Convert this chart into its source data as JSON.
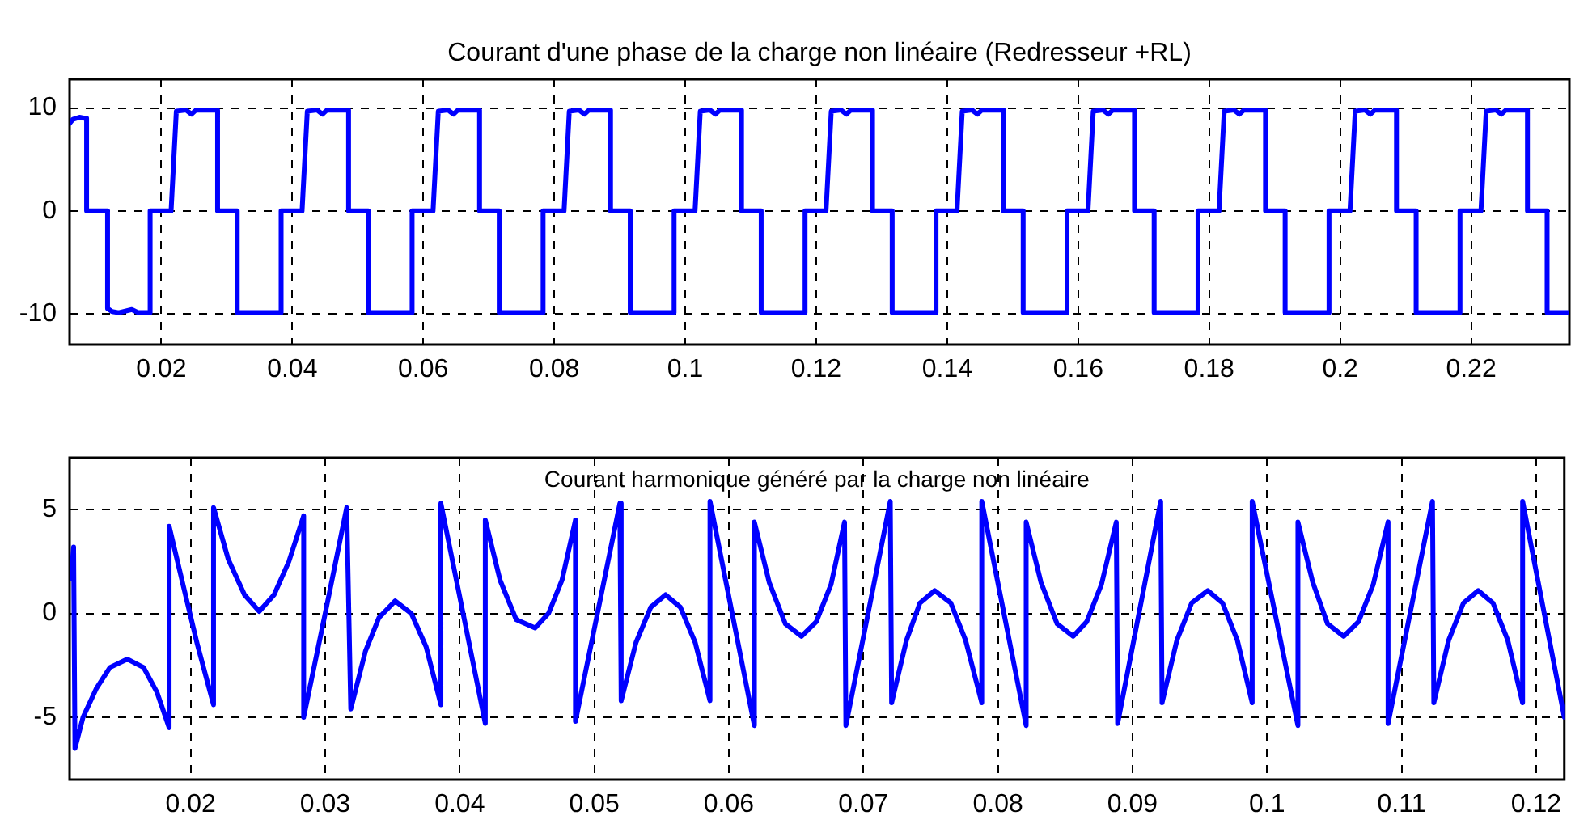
{
  "chart_data": [
    {
      "type": "line",
      "title": "Courant d'une phase de la charge non linéaire (Redresseur +RL)",
      "x": [
        0.006,
        0.0065,
        0.0075,
        0.0083,
        0.0086,
        0.0086,
        0.0118,
        0.0118,
        0.0125,
        0.0135,
        0.0155,
        0.0165,
        0.0183,
        0.0183,
        0.0215,
        0.0223,
        0.0238,
        0.0246,
        0.0253,
        0.0286,
        0.0286,
        0.0316,
        0.0316,
        0.0383,
        0.0383,
        0.0415,
        0.0423,
        0.0438,
        0.0446,
        0.0453,
        0.0486,
        0.0486,
        0.0516,
        0.0516,
        0.0583,
        0.0583,
        0.0615,
        0.0623,
        0.0638,
        0.0646,
        0.0653,
        0.0686,
        0.0686,
        0.0716,
        0.0716,
        0.0783,
        0.0783,
        0.0815,
        0.0823,
        0.0838,
        0.0846,
        0.0853,
        0.0886,
        0.0886,
        0.0916,
        0.0916,
        0.0983,
        0.0983,
        0.1015,
        0.1023,
        0.1038,
        0.1046,
        0.1053,
        0.1086,
        0.1086,
        0.1116,
        0.1116,
        0.1183,
        0.1183,
        0.1215,
        0.1223,
        0.1238,
        0.1246,
        0.1253,
        0.1286,
        0.1286,
        0.1316,
        0.1316,
        0.1383,
        0.1383,
        0.1415,
        0.1423,
        0.1438,
        0.1446,
        0.1453,
        0.1486,
        0.1486,
        0.1516,
        0.1516,
        0.1583,
        0.1583,
        0.1615,
        0.1623,
        0.1638,
        0.1646,
        0.1653,
        0.1686,
        0.1686,
        0.1716,
        0.1716,
        0.1783,
        0.1783,
        0.1815,
        0.1823,
        0.1838,
        0.1846,
        0.1853,
        0.1886,
        0.1886,
        0.1916,
        0.1916,
        0.1983,
        0.1983,
        0.2015,
        0.2023,
        0.2038,
        0.2046,
        0.2053,
        0.2086,
        0.2086,
        0.2116,
        0.2116,
        0.2183,
        0.2183,
        0.2215,
        0.2223,
        0.2238,
        0.2246,
        0.2253,
        0.2286,
        0.2286,
        0.2316,
        0.2316,
        0.235
      ],
      "series": [
        {
          "color": "#0000ff",
          "values": [
            8.5,
            8.9,
            9.1,
            9.0,
            9.0,
            0,
            0,
            -9.5,
            -9.8,
            -9.9,
            -9.6,
            -9.9,
            -9.9,
            0,
            0,
            9.7,
            9.8,
            9.4,
            9.8,
            9.8,
            0,
            0,
            -9.9,
            -9.9,
            0,
            0,
            9.7,
            9.8,
            9.4,
            9.8,
            9.8,
            0,
            0,
            -9.9,
            -9.9,
            0,
            0,
            9.7,
            9.8,
            9.4,
            9.8,
            9.8,
            0,
            0,
            -9.9,
            -9.9,
            0,
            0,
            9.7,
            9.8,
            9.4,
            9.8,
            9.8,
            0,
            0,
            -9.9,
            -9.9,
            0,
            0,
            9.7,
            9.8,
            9.4,
            9.8,
            9.8,
            0,
            0,
            -9.9,
            -9.9,
            0,
            0,
            9.7,
            9.8,
            9.4,
            9.8,
            9.8,
            0,
            0,
            -9.9,
            -9.9,
            0,
            0,
            9.7,
            9.8,
            9.4,
            9.8,
            9.8,
            0,
            0,
            -9.9,
            -9.9,
            0,
            0,
            9.7,
            9.8,
            9.4,
            9.8,
            9.8,
            0,
            0,
            -9.9,
            -9.9,
            0,
            0,
            9.7,
            9.8,
            9.4,
            9.8,
            9.8,
            0,
            0,
            -9.9,
            -9.9,
            0,
            0,
            9.7,
            9.8,
            9.4,
            9.8,
            9.8,
            0,
            0,
            -9.9,
            -9.9,
            0,
            0,
            9.7,
            9.8,
            9.4,
            9.8,
            9.8,
            0,
            0,
            -9.9,
            -9.9
          ]
        }
      ],
      "xlim": [
        0.006,
        0.235
      ],
      "ylim": [
        -13,
        12.8
      ],
      "xticks": [
        0.02,
        0.04,
        0.06,
        0.08,
        0.1,
        0.12,
        0.14,
        0.16,
        0.18,
        0.2,
        0.22
      ],
      "yticks": [
        -10,
        0,
        10
      ],
      "grid": true
    },
    {
      "type": "line",
      "title": "Courant harmonique généré par la charge non linéaire",
      "x": [
        0.0111,
        0.0113,
        0.0114,
        0.012,
        0.013,
        0.014,
        0.0153,
        0.0165,
        0.0175,
        0.0184,
        0.0184,
        0.0195,
        0.0205,
        0.0217,
        0.0217,
        0.0228,
        0.024,
        0.0251,
        0.0262,
        0.0273,
        0.0284,
        0.0284,
        0.03,
        0.0316,
        0.0319,
        0.033,
        0.034,
        0.0352,
        0.0364,
        0.0375,
        0.0386,
        0.0386,
        0.0419,
        0.0419,
        0.043,
        0.0442,
        0.0456,
        0.0466,
        0.0476,
        0.0486,
        0.0486,
        0.0519,
        0.052,
        0.0531,
        0.0542,
        0.0553,
        0.0564,
        0.0575,
        0.0586,
        0.0586,
        0.0619,
        0.0619,
        0.063,
        0.0642,
        0.0654,
        0.0665,
        0.0676,
        0.0686,
        0.0687,
        0.072,
        0.0721,
        0.0732,
        0.0742,
        0.0753,
        0.0765,
        0.0776,
        0.0788,
        0.0788,
        0.0821,
        0.0821,
        0.0832,
        0.0844,
        0.0856,
        0.0866,
        0.0877,
        0.0888,
        0.0889,
        0.0921,
        0.0922,
        0.0933,
        0.0944,
        0.0956,
        0.0967,
        0.0978,
        0.0989,
        0.0989,
        0.1023,
        0.1023,
        0.1034,
        0.1045,
        0.1057,
        0.1068,
        0.1079,
        0.109,
        0.109,
        0.1123,
        0.1124,
        0.1135,
        0.1146,
        0.1157,
        0.1168,
        0.1179,
        0.119,
        0.119,
        0.1221
      ],
      "series": [
        {
          "color": "#0000ff",
          "values": [
            1.7,
            3.2,
            -6.5,
            -5.0,
            -3.6,
            -2.6,
            -2.2,
            -2.6,
            -3.8,
            -5.5,
            4.2,
            1.2,
            -1.5,
            -4.4,
            5.1,
            2.6,
            0.9,
            0.1,
            0.9,
            2.5,
            4.7,
            -5.0,
            0,
            5.1,
            -4.6,
            -1.8,
            -0.2,
            0.6,
            0,
            -1.6,
            -4.4,
            5.3,
            -5.3,
            4.5,
            1.6,
            -0.3,
            -0.7,
            0,
            1.6,
            4.5,
            -5.2,
            5.3,
            -4.2,
            -1.4,
            0.3,
            0.9,
            0.3,
            -1.4,
            -4.2,
            5.4,
            -5.4,
            4.4,
            1.5,
            -0.5,
            -1.1,
            -0.4,
            1.4,
            4.4,
            -5.4,
            5.4,
            -4.3,
            -1.3,
            0.5,
            1.1,
            0.5,
            -1.3,
            -4.3,
            5.4,
            -5.4,
            4.4,
            1.5,
            -0.5,
            -1.1,
            -0.4,
            1.4,
            4.4,
            -5.3,
            5.4,
            -4.3,
            -1.3,
            0.5,
            1.1,
            0.5,
            -1.3,
            -4.3,
            5.4,
            -5.4,
            4.4,
            1.5,
            -0.5,
            -1.1,
            -0.4,
            1.4,
            4.4,
            -5.3,
            5.4,
            -4.3,
            -1.3,
            0.5,
            1.1,
            0.5,
            -1.3,
            -4.3,
            5.4,
            -5.0
          ]
        }
      ],
      "xlim": [
        0.011,
        0.1221
      ],
      "ylim": [
        -8,
        7.5
      ],
      "xticks": [
        0.02,
        0.03,
        0.04,
        0.05,
        0.06,
        0.07,
        0.08,
        0.09,
        0.1,
        0.11,
        0.12
      ],
      "yticks": [
        -5,
        0,
        5
      ],
      "grid": true
    }
  ]
}
